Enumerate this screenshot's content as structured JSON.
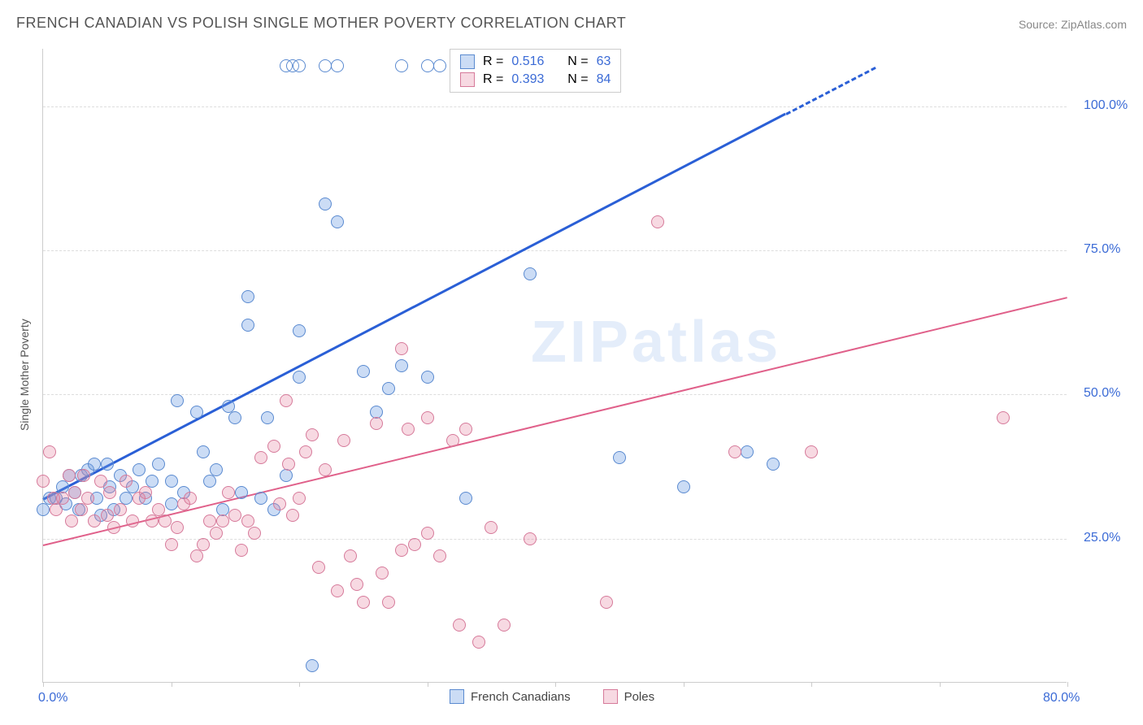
{
  "title": "FRENCH CANADIAN VS POLISH SINGLE MOTHER POVERTY CORRELATION CHART",
  "source": "Source: ZipAtlas.com",
  "ylabel": "Single Mother Poverty",
  "watermark": "ZIPatlas",
  "chart": {
    "type": "scatter",
    "background_color": "#ffffff",
    "grid_color": "#dddddd",
    "axis_color": "#cccccc",
    "label_color": "#3b6bd6",
    "text_color": "#555555",
    "xlim": [
      0,
      80
    ],
    "ylim": [
      0,
      110
    ],
    "xticks": [
      0,
      10,
      20,
      30,
      40,
      50,
      60,
      70,
      80
    ],
    "xtick_labels": {
      "0": "0.0%",
      "80": "80.0%"
    },
    "yticks": [
      25,
      50,
      75,
      100
    ],
    "ytick_labels": [
      "25.0%",
      "50.0%",
      "75.0%",
      "100.0%"
    ],
    "marker_size": 16,
    "series": [
      {
        "name": "French Canadians",
        "color_fill": "rgba(105,155,225,0.35)",
        "color_stroke": "#5a8ad0",
        "trend_color": "#2a5fd6",
        "trend_width": 3,
        "r": "0.516",
        "n": "63",
        "trend": {
          "x1": 0,
          "y1": 32,
          "x2": 65,
          "y2": 107,
          "dash_after_x": 58
        },
        "points": [
          [
            0,
            30
          ],
          [
            0.5,
            32
          ],
          [
            1,
            32
          ],
          [
            1.5,
            34
          ],
          [
            1.8,
            31
          ],
          [
            2,
            36
          ],
          [
            2.5,
            33
          ],
          [
            2.8,
            30
          ],
          [
            3,
            36
          ],
          [
            3.5,
            37
          ],
          [
            4,
            38
          ],
          [
            4.2,
            32
          ],
          [
            4.5,
            29
          ],
          [
            5,
            38
          ],
          [
            5.2,
            34
          ],
          [
            5.5,
            30
          ],
          [
            6,
            36
          ],
          [
            6.5,
            32
          ],
          [
            7,
            34
          ],
          [
            7.5,
            37
          ],
          [
            8,
            32
          ],
          [
            8.5,
            35
          ],
          [
            9,
            38
          ],
          [
            10,
            31
          ],
          [
            10,
            35
          ],
          [
            10.5,
            49
          ],
          [
            11,
            33
          ],
          [
            12,
            47
          ],
          [
            12.5,
            40
          ],
          [
            13,
            35
          ],
          [
            13.5,
            37
          ],
          [
            14,
            30
          ],
          [
            14.5,
            48
          ],
          [
            15,
            46
          ],
          [
            15.5,
            33
          ],
          [
            16,
            62
          ],
          [
            16,
            67
          ],
          [
            17,
            32
          ],
          [
            17.5,
            46
          ],
          [
            18,
            30
          ],
          [
            19,
            36
          ],
          [
            20,
            61
          ],
          [
            20,
            53
          ],
          [
            21,
            3
          ],
          [
            22,
            83
          ],
          [
            23,
            80
          ],
          [
            25,
            54
          ],
          [
            26,
            47
          ],
          [
            27,
            51
          ],
          [
            28,
            55
          ],
          [
            30,
            53
          ],
          [
            33,
            32
          ],
          [
            38,
            71
          ],
          [
            45,
            39
          ],
          [
            50,
            34
          ],
          [
            55,
            40
          ],
          [
            57,
            38
          ]
        ],
        "points_hollow": [
          [
            19,
            107
          ],
          [
            19.5,
            107
          ],
          [
            20,
            107
          ],
          [
            22,
            107
          ],
          [
            23,
            107
          ],
          [
            28,
            107
          ],
          [
            30,
            107
          ],
          [
            31,
            107
          ],
          [
            33,
            107
          ],
          [
            34,
            107
          ]
        ]
      },
      {
        "name": "Poles",
        "color_fill": "rgba(230,130,160,0.30)",
        "color_stroke": "#d67a9a",
        "trend_color": "#e0608a",
        "trend_width": 2.5,
        "r": "0.393",
        "n": "84",
        "trend": {
          "x1": 0,
          "y1": 24,
          "x2": 80,
          "y2": 67
        },
        "points": [
          [
            0,
            35
          ],
          [
            0.5,
            40
          ],
          [
            0.8,
            32
          ],
          [
            1,
            30
          ],
          [
            1.5,
            32
          ],
          [
            2,
            36
          ],
          [
            2.2,
            28
          ],
          [
            2.5,
            33
          ],
          [
            3,
            30
          ],
          [
            3.2,
            36
          ],
          [
            3.5,
            32
          ],
          [
            4,
            28
          ],
          [
            4.5,
            35
          ],
          [
            5,
            29
          ],
          [
            5.2,
            33
          ],
          [
            5.5,
            27
          ],
          [
            6,
            30
          ],
          [
            6.5,
            35
          ],
          [
            7,
            28
          ],
          [
            7.5,
            32
          ],
          [
            8,
            33
          ],
          [
            8.5,
            28
          ],
          [
            9,
            30
          ],
          [
            9.5,
            28
          ],
          [
            10,
            24
          ],
          [
            10.5,
            27
          ],
          [
            11,
            31
          ],
          [
            11.5,
            32
          ],
          [
            12,
            22
          ],
          [
            12.5,
            24
          ],
          [
            13,
            28
          ],
          [
            13.5,
            26
          ],
          [
            14,
            28
          ],
          [
            14.5,
            33
          ],
          [
            15,
            29
          ],
          [
            15.5,
            23
          ],
          [
            16,
            28
          ],
          [
            16.5,
            26
          ],
          [
            17,
            39
          ],
          [
            18,
            41
          ],
          [
            18.5,
            31
          ],
          [
            19,
            49
          ],
          [
            19.2,
            38
          ],
          [
            19.5,
            29
          ],
          [
            20,
            32
          ],
          [
            20.5,
            40
          ],
          [
            21,
            43
          ],
          [
            21.5,
            20
          ],
          [
            22,
            37
          ],
          [
            23,
            16
          ],
          [
            23.5,
            42
          ],
          [
            24,
            22
          ],
          [
            24.5,
            17
          ],
          [
            25,
            14
          ],
          [
            26,
            45
          ],
          [
            26.5,
            19
          ],
          [
            27,
            14
          ],
          [
            28,
            23
          ],
          [
            28,
            58
          ],
          [
            28.5,
            44
          ],
          [
            29,
            24
          ],
          [
            30,
            26
          ],
          [
            30,
            46
          ],
          [
            31,
            22
          ],
          [
            32,
            42
          ],
          [
            32.5,
            10
          ],
          [
            33,
            44
          ],
          [
            34,
            7
          ],
          [
            35,
            27
          ],
          [
            36,
            10
          ],
          [
            38,
            25
          ],
          [
            44,
            14
          ],
          [
            48,
            80
          ],
          [
            54,
            40
          ],
          [
            60,
            40
          ],
          [
            75,
            46
          ]
        ],
        "points_hollow": [
          [
            43,
            107
          ],
          [
            44,
            107
          ]
        ]
      }
    ]
  },
  "legend_top": {
    "rows": [
      {
        "swatch": "blue",
        "r_label": "R  =",
        "r_val": "0.516",
        "n_label": "N  =",
        "n_val": "63"
      },
      {
        "swatch": "pink",
        "r_label": "R  =",
        "r_val": "0.393",
        "n_label": "N  =",
        "n_val": "84"
      }
    ]
  },
  "legend_bottom": {
    "items": [
      {
        "swatch": "blue",
        "label": "French Canadians"
      },
      {
        "swatch": "pink",
        "label": "Poles"
      }
    ]
  }
}
